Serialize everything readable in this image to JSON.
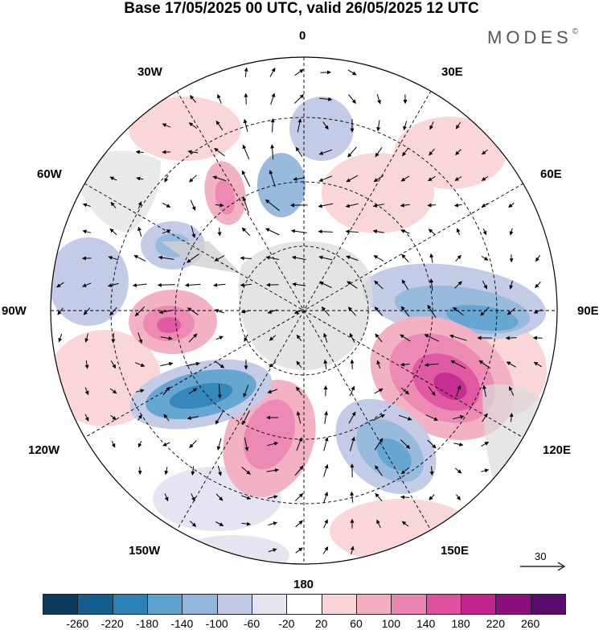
{
  "title": "Base 17/05/2025 00 UTC, valid 26/05/2025 12 UTC",
  "brand": {
    "name": "MODES",
    "mark": "©"
  },
  "longitude_labels": {
    "top": "0",
    "bottom": "180",
    "left": "90W",
    "right": "90E",
    "upper_left_1": "30W",
    "upper_right_1": "30E",
    "upper_left_2": "60W",
    "upper_right_2": "60E",
    "lower_left_1": "120W",
    "lower_right_1": "120E",
    "lower_left_2": "150W",
    "lower_right_2": "150E"
  },
  "vector_scale": {
    "label": "30",
    "icon": "arrow-right-icon"
  },
  "colorbar": {
    "ticks": [
      "-260",
      "-220",
      "-180",
      "-140",
      "-100",
      "-60",
      "-20",
      "20",
      "60",
      "100",
      "140",
      "180",
      "220",
      "260"
    ],
    "colors": [
      "#0c3a5c",
      "#145e8e",
      "#2b82b8",
      "#5ea3cf",
      "#93b7dc",
      "#c0c9e6",
      "#e4e4f2",
      "#ffffff",
      "#f9d4d6",
      "#f3aec0",
      "#eb84b1",
      "#de519f",
      "#c4238c",
      "#8d0f7e",
      "#5a0b6e"
    ]
  },
  "anomalies": [
    {
      "type": "negative",
      "strength": "strong",
      "region": "east-90E-120E"
    },
    {
      "type": "positive",
      "strength": "strong",
      "region": "southeast-120E-150E"
    },
    {
      "type": "negative",
      "strength": "strong",
      "region": "lower-right-150E"
    },
    {
      "type": "positive",
      "strength": "moderate",
      "region": "lower-left-150W-180"
    },
    {
      "type": "negative",
      "strength": "strong",
      "region": "lower-left-120W"
    },
    {
      "type": "positive",
      "strength": "moderate",
      "region": "west-90W"
    },
    {
      "type": "negative",
      "strength": "moderate",
      "region": "upper-left-60W"
    },
    {
      "type": "positive",
      "strength": "moderate",
      "region": "upper-left-30W-60W"
    }
  ]
}
